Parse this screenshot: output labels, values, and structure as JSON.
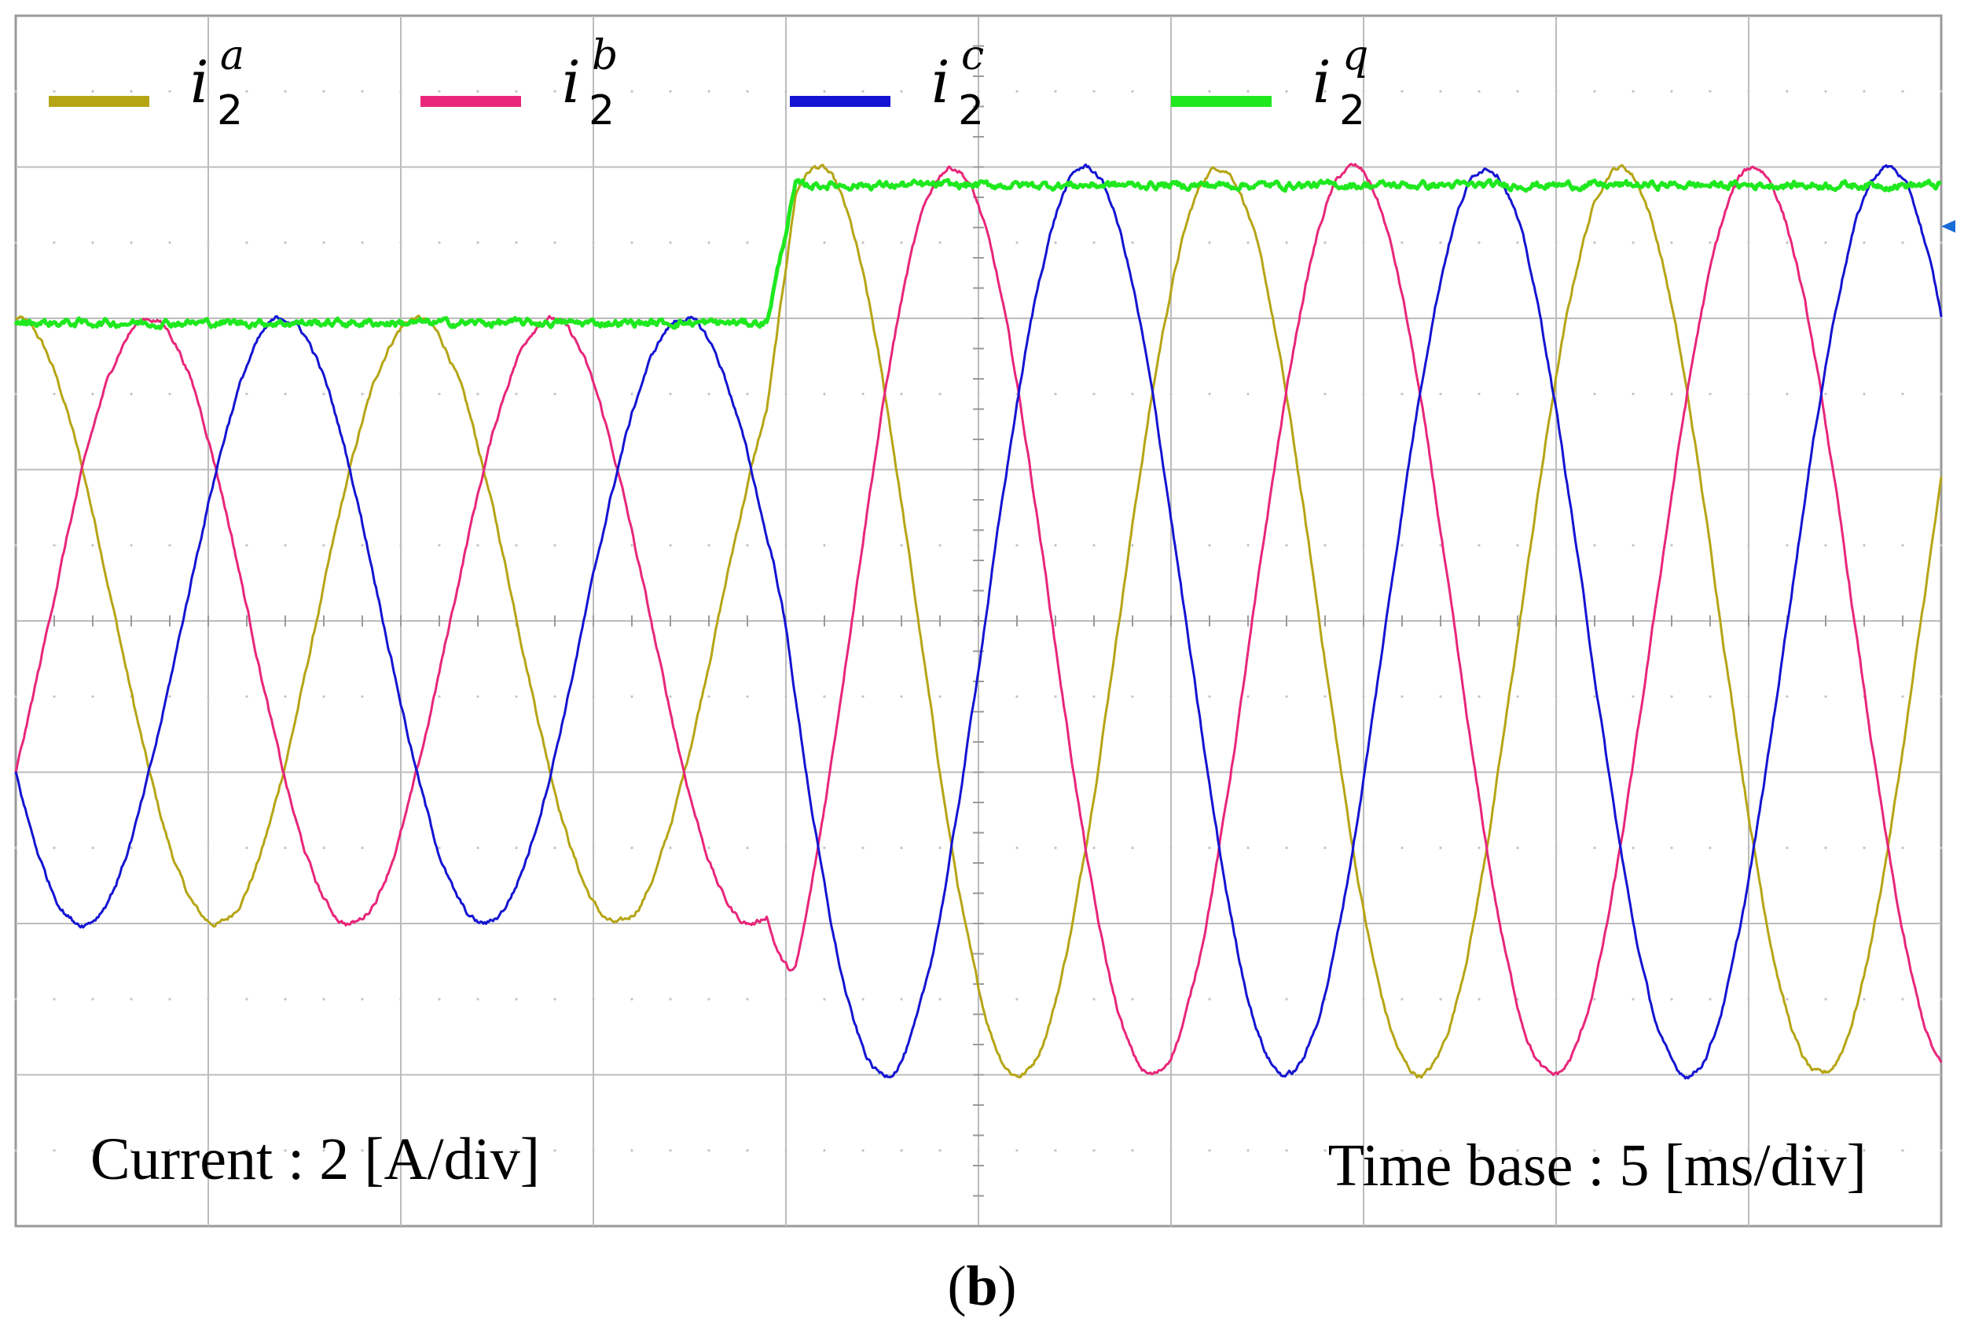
{
  "chart_data": {
    "type": "line",
    "grid": true,
    "x_divisions": 10,
    "y_divisions": 8,
    "xlim_div": [
      0,
      10
    ],
    "ylim_div": [
      -4,
      4
    ],
    "time_per_div_ms": 5,
    "current_per_div_A": 2,
    "step_time_div": 3.9,
    "series": [
      {
        "name_base": "i",
        "sub": "2",
        "sup": "a",
        "color": "#b5a515",
        "kind": "ac",
        "amp_before": 2.0,
        "amp_after": 3.0,
        "phase_deg": 90
      },
      {
        "name_base": "i",
        "sub": "2",
        "sup": "b",
        "color": "#e8267a",
        "kind": "ac",
        "amp_before": 2.0,
        "amp_after": 3.0,
        "phase_deg": -30
      },
      {
        "name_base": "i",
        "sub": "2",
        "sup": "c",
        "color": "#1414d2",
        "kind": "ac",
        "amp_before": 2.0,
        "amp_after": 3.0,
        "phase_deg": 210
      },
      {
        "name_base": "i",
        "sub": "2",
        "sup": "q",
        "color": "#1fe81f",
        "kind": "dc",
        "value_before": 1.97,
        "value_after": 2.88
      }
    ],
    "frequency_cycles_per_div": 0.48,
    "annotations": {
      "current": "Current  : 2 [A/div]",
      "timebase": "Time  base : 5 [ms/div]"
    }
  },
  "caption": {
    "open": "(",
    "letter": "b",
    "close": ")"
  }
}
